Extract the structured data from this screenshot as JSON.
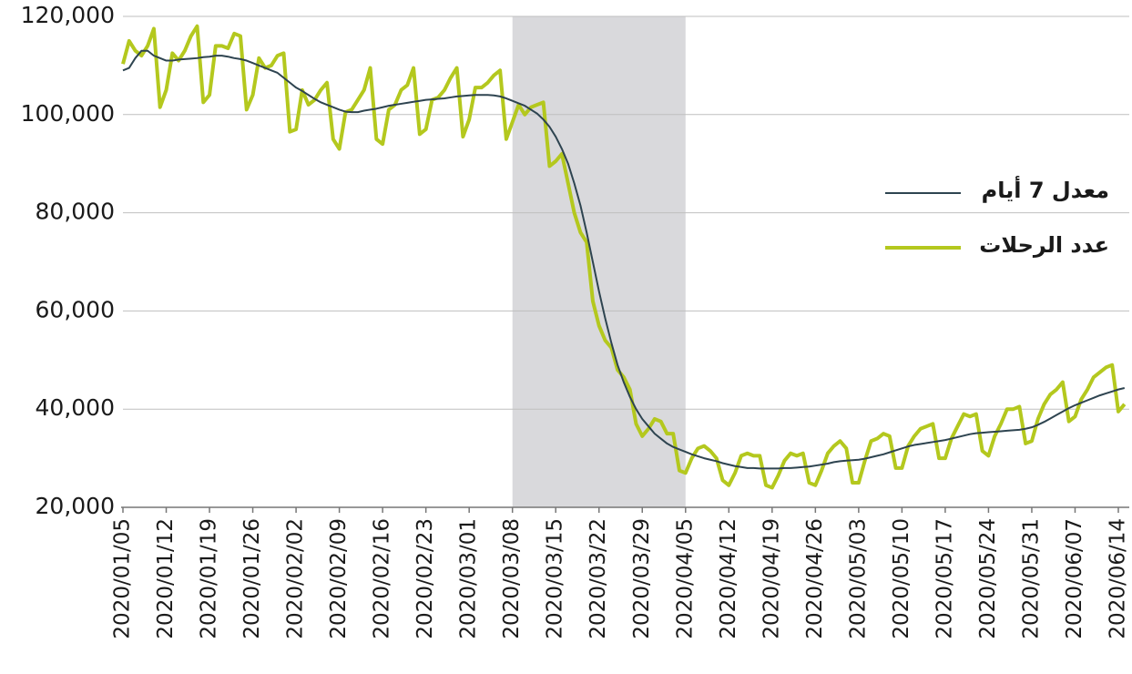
{
  "chart_data": {
    "type": "line",
    "x": [
      "2020/01/05",
      "2020/01/06",
      "2020/01/07",
      "2020/01/08",
      "2020/01/09",
      "2020/01/10",
      "2020/01/11",
      "2020/01/12",
      "2020/01/13",
      "2020/01/14",
      "2020/01/15",
      "2020/01/16",
      "2020/01/17",
      "2020/01/18",
      "2020/01/19",
      "2020/01/20",
      "2020/01/21",
      "2020/01/22",
      "2020/01/23",
      "2020/01/24",
      "2020/01/25",
      "2020/01/26",
      "2020/01/27",
      "2020/01/28",
      "2020/01/29",
      "2020/01/30",
      "2020/01/31",
      "2020/02/01",
      "2020/02/02",
      "2020/02/03",
      "2020/02/04",
      "2020/02/05",
      "2020/02/06",
      "2020/02/07",
      "2020/02/08",
      "2020/02/09",
      "2020/02/10",
      "2020/02/11",
      "2020/02/12",
      "2020/02/13",
      "2020/02/14",
      "2020/02/15",
      "2020/02/16",
      "2020/02/17",
      "2020/02/18",
      "2020/02/19",
      "2020/02/20",
      "2020/02/21",
      "2020/02/22",
      "2020/02/23",
      "2020/02/24",
      "2020/02/25",
      "2020/02/26",
      "2020/02/27",
      "2020/02/28",
      "2020/02/29",
      "2020/03/01",
      "2020/03/02",
      "2020/03/03",
      "2020/03/04",
      "2020/03/05",
      "2020/03/06",
      "2020/03/07",
      "2020/03/08",
      "2020/03/09",
      "2020/03/10",
      "2020/03/11",
      "2020/03/12",
      "2020/03/13",
      "2020/03/14",
      "2020/03/15",
      "2020/03/16",
      "2020/03/17",
      "2020/03/18",
      "2020/03/19",
      "2020/03/20",
      "2020/03/21",
      "2020/03/22",
      "2020/03/23",
      "2020/03/24",
      "2020/03/25",
      "2020/03/26",
      "2020/03/27",
      "2020/03/28",
      "2020/03/29",
      "2020/03/30",
      "2020/03/31",
      "2020/04/01",
      "2020/04/02",
      "2020/04/03",
      "2020/04/04",
      "2020/04/05",
      "2020/04/06",
      "2020/04/07",
      "2020/04/08",
      "2020/04/09",
      "2020/04/10",
      "2020/04/11",
      "2020/04/12",
      "2020/04/13",
      "2020/04/14",
      "2020/04/15",
      "2020/04/16",
      "2020/04/17",
      "2020/04/18",
      "2020/04/19",
      "2020/04/20",
      "2020/04/21",
      "2020/04/22",
      "2020/04/23",
      "2020/04/24",
      "2020/04/25",
      "2020/04/26",
      "2020/04/27",
      "2020/04/28",
      "2020/04/29",
      "2020/04/30",
      "2020/05/01",
      "2020/05/02",
      "2020/05/03",
      "2020/05/04",
      "2020/05/05",
      "2020/05/06",
      "2020/05/07",
      "2020/05/08",
      "2020/05/09",
      "2020/05/10",
      "2020/05/11",
      "2020/05/12",
      "2020/05/13",
      "2020/05/14",
      "2020/05/15",
      "2020/05/16",
      "2020/05/17",
      "2020/05/18",
      "2020/05/19",
      "2020/05/20",
      "2020/05/21",
      "2020/05/22",
      "2020/05/23",
      "2020/05/24",
      "2020/05/25",
      "2020/05/26",
      "2020/05/27",
      "2020/05/28",
      "2020/05/29",
      "2020/05/30",
      "2020/05/31",
      "2020/06/01",
      "2020/06/02",
      "2020/06/03",
      "2020/06/04",
      "2020/06/05",
      "2020/06/06",
      "2020/06/07",
      "2020/06/08",
      "2020/06/09",
      "2020/06/10",
      "2020/06/11",
      "2020/06/12",
      "2020/06/13",
      "2020/06/14",
      "2020/06/15"
    ],
    "series": [
      {
        "name": "معدل 7 أيام",
        "color": "#2e4450",
        "width": 2,
        "values": [
          109000,
          109500,
          111500,
          113000,
          113000,
          112000,
          111500,
          111000,
          111000,
          111200,
          111300,
          111400,
          111500,
          111700,
          111800,
          112000,
          112000,
          111800,
          111500,
          111300,
          111000,
          110500,
          110000,
          109500,
          109000,
          108500,
          107500,
          106500,
          105500,
          104800,
          104000,
          103200,
          102500,
          102000,
          101500,
          101000,
          100600,
          100500,
          100500,
          100800,
          101000,
          101200,
          101500,
          101800,
          102000,
          102200,
          102400,
          102600,
          102800,
          103000,
          103100,
          103200,
          103300,
          103500,
          103700,
          103800,
          103900,
          104000,
          104000,
          104000,
          103900,
          103700,
          103300,
          102800,
          102300,
          101800,
          101000,
          100200,
          99000,
          97500,
          95500,
          93000,
          90000,
          86000,
          81500,
          76000,
          70000,
          64000,
          58500,
          53500,
          49000,
          45500,
          42500,
          40000,
          38000,
          36500,
          35000,
          34000,
          33000,
          32300,
          31800,
          31300,
          30800,
          30400,
          30000,
          29700,
          29400,
          29000,
          28700,
          28400,
          28200,
          28000,
          28000,
          27900,
          27900,
          27900,
          27900,
          28000,
          28000,
          28100,
          28200,
          28300,
          28500,
          28700,
          28900,
          29200,
          29400,
          29500,
          29600,
          29700,
          29900,
          30200,
          30500,
          30800,
          31200,
          31600,
          32000,
          32400,
          32700,
          32900,
          33100,
          33300,
          33500,
          33700,
          34000,
          34300,
          34600,
          34900,
          35100,
          35200,
          35300,
          35400,
          35500,
          35600,
          35700,
          35800,
          36000,
          36300,
          36800,
          37400,
          38100,
          38800,
          39500,
          40200,
          40800,
          41300,
          41800,
          42300,
          42800,
          43200,
          43600,
          44000,
          44300
        ]
      },
      {
        "name": "عدد الرحلات",
        "color": "#b4c81e",
        "width": 4,
        "values": [
          110300,
          115000,
          113000,
          112000,
          114000,
          117500,
          101500,
          105000,
          112500,
          111000,
          113000,
          116000,
          118000,
          102500,
          104000,
          114000,
          114000,
          113500,
          116500,
          116000,
          101000,
          104000,
          111500,
          109500,
          110000,
          112000,
          112500,
          96500,
          97000,
          105000,
          102000,
          103000,
          105000,
          106500,
          95000,
          93000,
          100500,
          101000,
          103000,
          105000,
          109500,
          95000,
          94000,
          101000,
          102000,
          105000,
          106000,
          109500,
          96000,
          97000,
          103000,
          103500,
          105000,
          107500,
          109500,
          95500,
          99000,
          105500,
          105500,
          106500,
          108000,
          109000,
          95000,
          98500,
          102000,
          100000,
          101500,
          102000,
          102500,
          89500,
          90500,
          92000,
          86000,
          80000,
          76000,
          74000,
          62000,
          57000,
          54000,
          52500,
          48000,
          46500,
          44000,
          37000,
          34500,
          36000,
          38000,
          37500,
          35000,
          35000,
          27500,
          27000,
          30000,
          32000,
          32500,
          31500,
          30000,
          25500,
          24500,
          27000,
          30500,
          31000,
          30500,
          30500,
          24500,
          24000,
          26500,
          29500,
          31000,
          30500,
          31000,
          25000,
          24500,
          27500,
          31000,
          32500,
          33500,
          32000,
          25000,
          25000,
          29500,
          33500,
          34000,
          35000,
          34500,
          28000,
          28000,
          32500,
          34500,
          36000,
          36500,
          37000,
          30000,
          30000,
          34000,
          36500,
          39000,
          38500,
          39000,
          31500,
          30500,
          34500,
          37000,
          40000,
          40000,
          40500,
          33000,
          33500,
          38000,
          41000,
          43000,
          44000,
          45500,
          37500,
          38500,
          42000,
          44000,
          46500,
          47500,
          48500,
          49000,
          39500,
          41000
        ]
      }
    ],
    "xlim": [
      "2020/01/05",
      "2020/06/14"
    ],
    "xticks": [
      "2020/01/05",
      "2020/01/12",
      "2020/01/19",
      "2020/01/26",
      "2020/02/02",
      "2020/02/09",
      "2020/02/16",
      "2020/02/23",
      "2020/03/01",
      "2020/03/08",
      "2020/03/15",
      "2020/03/22",
      "2020/03/29",
      "2020/04/05",
      "2020/04/12",
      "2020/04/19",
      "2020/04/26",
      "2020/05/03",
      "2020/05/10",
      "2020/05/17",
      "2020/05/24",
      "2020/05/31",
      "2020/06/07",
      "2020/06/14"
    ],
    "ylim": [
      20000,
      120000
    ],
    "yticks": [
      {
        "value": 20000,
        "label": "20,000"
      },
      {
        "value": 40000,
        "label": "40,000"
      },
      {
        "value": 60000,
        "label": "60,000"
      },
      {
        "value": 80000,
        "label": "80,000"
      },
      {
        "value": 100000,
        "label": "100,000"
      },
      {
        "value": 120000,
        "label": "120,000"
      }
    ],
    "grid": true,
    "shaded_span": {
      "from": "2020/03/08",
      "to": "2020/04/05",
      "color": "#d9d9dc"
    },
    "legend": "right"
  }
}
